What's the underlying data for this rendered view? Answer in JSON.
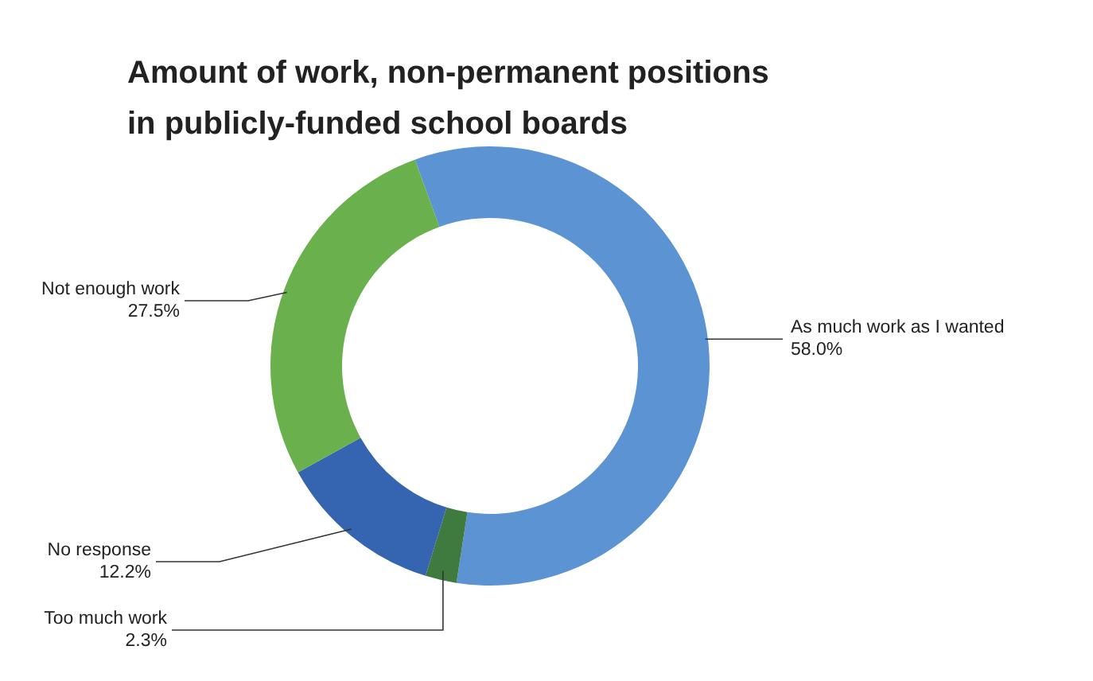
{
  "chart_data": {
    "type": "donut",
    "title": "Amount of work, non-permanent positions in publicly-funded school boards",
    "categories": [
      "As much work as I wanted",
      "Too much work",
      "No response",
      "Not enough work"
    ],
    "values": [
      58.0,
      2.3,
      12.2,
      27.5
    ],
    "colors": [
      "#5b93d3",
      "#3f7a3f",
      "#3565b0",
      "#6ab04c"
    ],
    "value_labels": [
      "58.0%",
      "2.3%",
      "12.2%",
      "27.5%"
    ]
  }
}
